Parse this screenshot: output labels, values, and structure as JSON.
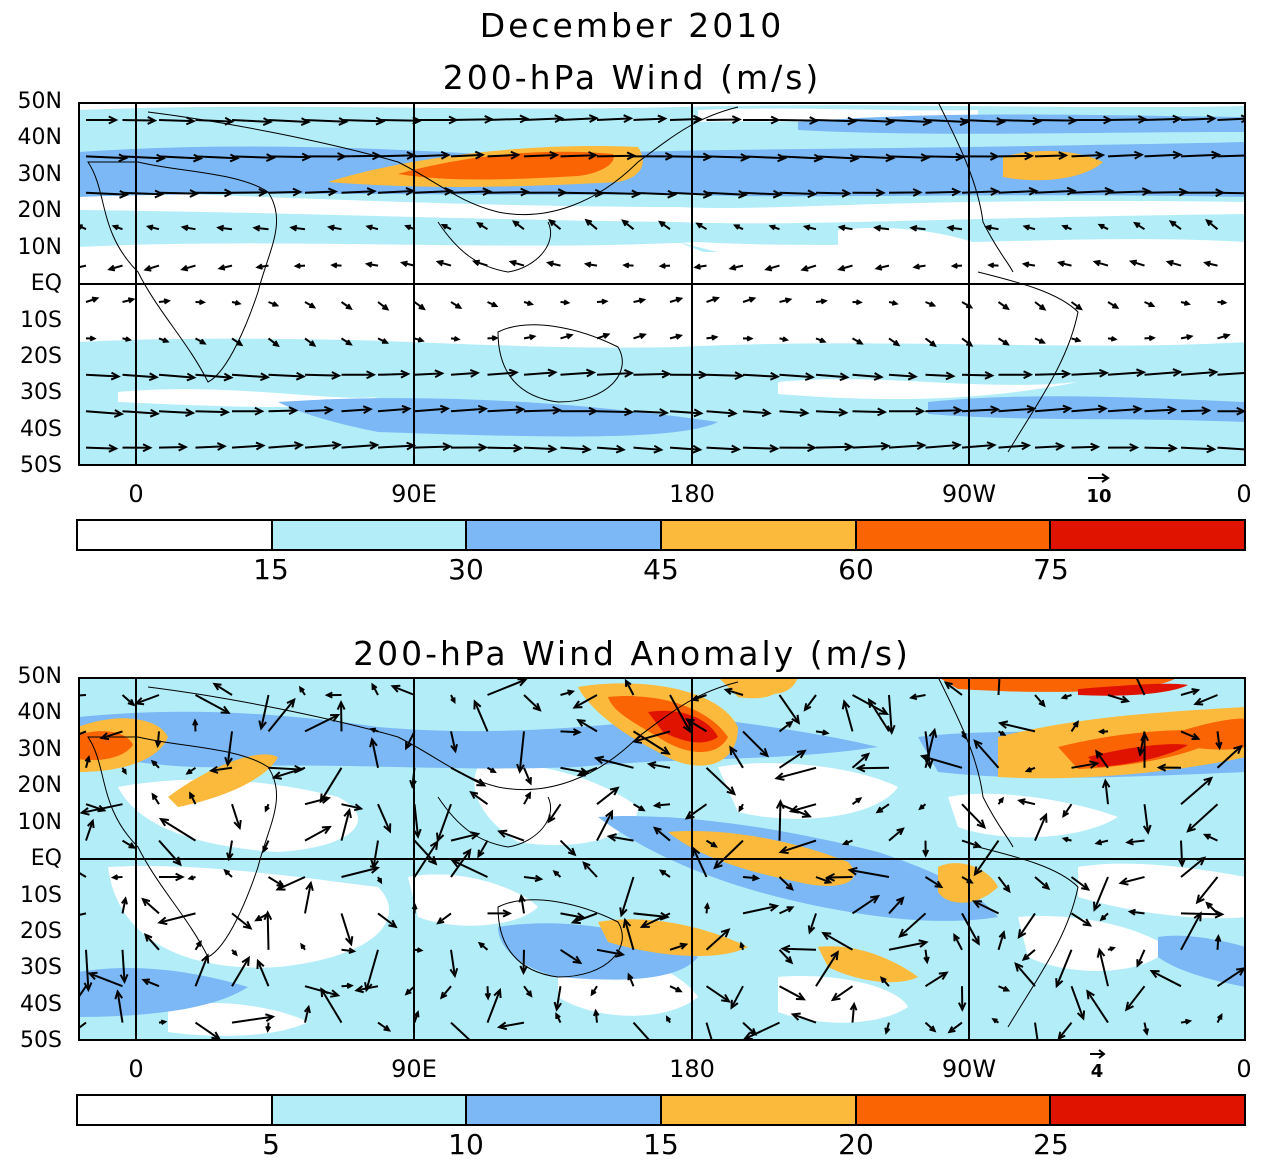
{
  "main_title": "December 2010",
  "panels": [
    {
      "title": "200-hPa Wind (m/s)",
      "lat_labels": [
        "50N",
        "40N",
        "30N",
        "20N",
        "10N",
        "EQ",
        "10S",
        "20S",
        "30S",
        "40S",
        "50S"
      ],
      "lon_labels": [
        "0",
        "90E",
        "180",
        "90W",
        "0"
      ],
      "reference_vector": "10",
      "colorbar": {
        "labels": [
          "15",
          "30",
          "45",
          "60",
          "75"
        ],
        "colors": [
          "#ffffff",
          "#b3eef8",
          "#7bb8f5",
          "#fbba3c",
          "#fb6402",
          "#e01300"
        ]
      }
    },
    {
      "title": "200-hPa Wind Anomaly (m/s)",
      "lat_labels": [
        "50N",
        "40N",
        "30N",
        "20N",
        "10N",
        "EQ",
        "10S",
        "20S",
        "30S",
        "40S",
        "50S"
      ],
      "lon_labels": [
        "0",
        "90E",
        "180",
        "90W",
        "0"
      ],
      "reference_vector": "4",
      "colorbar": {
        "labels": [
          "5",
          "10",
          "15",
          "20",
          "25"
        ],
        "colors": [
          "#ffffff",
          "#b3eef8",
          "#7bb8f5",
          "#fbba3c",
          "#fb6402",
          "#e01300"
        ]
      }
    }
  ]
}
